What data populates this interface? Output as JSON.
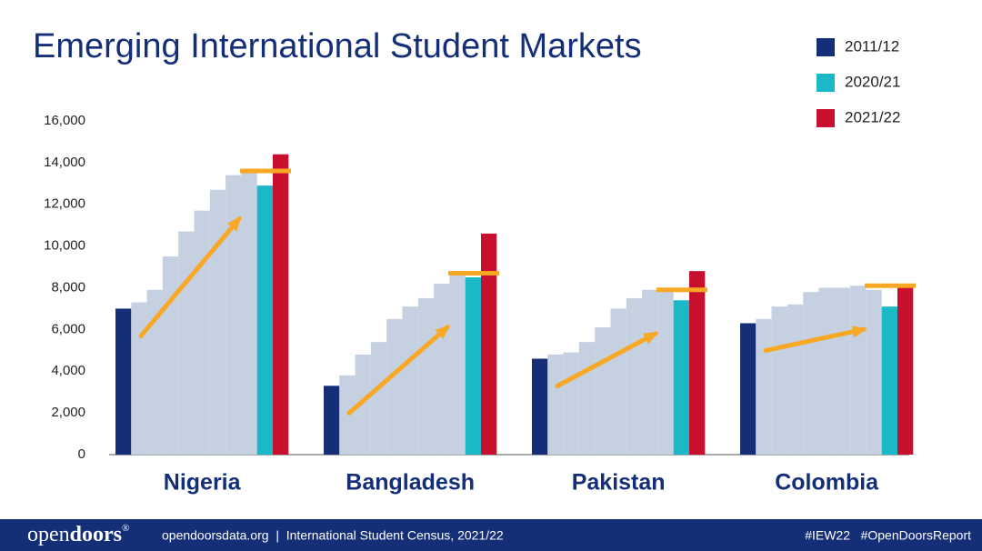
{
  "chart_data": {
    "type": "bar",
    "title": "Emerging International Student Markets",
    "categories": [
      "Nigeria",
      "Bangladesh",
      "Pakistan",
      "Colombia"
    ],
    "series": [
      {
        "name": "2011/12",
        "color": "#142f78",
        "values": [
          7000,
          3300,
          4600,
          6300
        ]
      },
      {
        "name": null,
        "color": "#c5d0e0",
        "values": [
          7300,
          3800,
          4800,
          6500
        ]
      },
      {
        "name": null,
        "color": "#c5d0e0",
        "values": [
          7900,
          4800,
          4900,
          7100
        ]
      },
      {
        "name": null,
        "color": "#c5d0e0",
        "values": [
          9500,
          5400,
          5400,
          7200
        ]
      },
      {
        "name": null,
        "color": "#c5d0e0",
        "values": [
          10700,
          6500,
          6100,
          7800
        ]
      },
      {
        "name": null,
        "color": "#c5d0e0",
        "values": [
          11700,
          7100,
          7000,
          8000
        ]
      },
      {
        "name": null,
        "color": "#c5d0e0",
        "values": [
          12700,
          7500,
          7500,
          8000
        ]
      },
      {
        "name": null,
        "color": "#c5d0e0",
        "values": [
          13400,
          8200,
          7900,
          8100
        ]
      },
      {
        "name": null,
        "color": "#c5d0e0",
        "values": [
          13600,
          8700,
          7900,
          7900
        ]
      },
      {
        "name": "2020/21",
        "color": "#1bb8c8",
        "values": [
          12900,
          8500,
          7400,
          7100
        ]
      },
      {
        "name": "2021/22",
        "color": "#c8102e",
        "values": [
          14400,
          10600,
          8800,
          8100
        ]
      }
    ],
    "ylim": [
      0,
      16000
    ],
    "yticks": [
      0,
      {
        "value": 2000,
        "label": "2,000"
      },
      {
        "value": 4000,
        "label": "4,000"
      },
      {
        "value": 6000,
        "label": "6,000"
      },
      {
        "value": 8000,
        "label": "8,000"
      },
      {
        "value": 10000,
        "label": "10,000"
      },
      {
        "value": 12000,
        "label": "12,000"
      },
      {
        "value": 14000,
        "label": "14,000"
      },
      {
        "value": 16000,
        "label": "16,000"
      }
    ],
    "grid": false,
    "legend": "top-right"
  },
  "footer": {
    "logo_light": "open",
    "logo_bold": "doors",
    "logo_mark": "®",
    "source": "opendoorsdata.org  |  International Student Census, 2021/22",
    "hashtag1": "#IEW22",
    "hashtag2": "#OpenDoorsReport"
  }
}
